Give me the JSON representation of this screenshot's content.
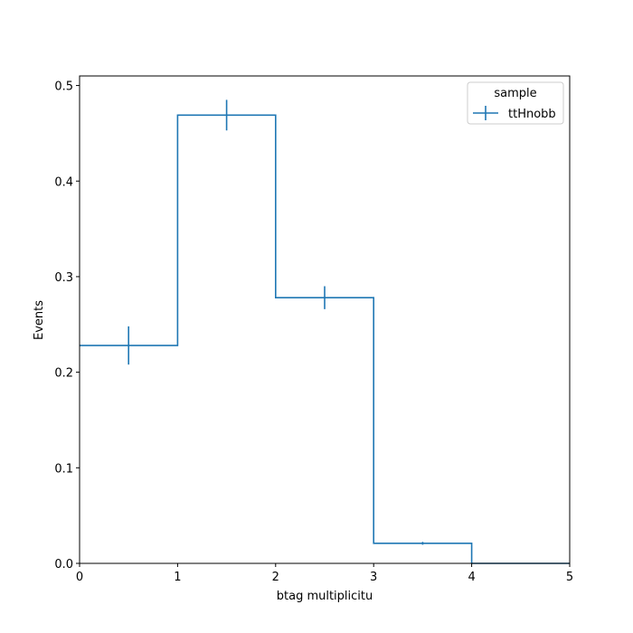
{
  "chart_data": {
    "type": "step histogram with error bars",
    "xlabel": "btag multiplicitu",
    "ylabel": "Events",
    "xlim": [
      0,
      5
    ],
    "ylim": [
      0,
      0.51
    ],
    "x_ticks": [
      "0",
      "1",
      "2",
      "3",
      "4",
      "5"
    ],
    "y_ticks": [
      "0.0",
      "0.1",
      "0.2",
      "0.3",
      "0.4",
      "0.5"
    ],
    "grid": false,
    "legend": {
      "title": "sample",
      "placement": "top-right",
      "entries": [
        "ttHnobb"
      ]
    },
    "series": [
      {
        "name": "ttHnobb",
        "color": "#1f77b4",
        "bin_edges": [
          0,
          1,
          2,
          3,
          4,
          5
        ],
        "bin_centers": [
          0.5,
          1.5,
          2.5,
          3.5,
          4.5
        ],
        "values": [
          0.228,
          0.469,
          0.278,
          0.021,
          0.0
        ],
        "errors": [
          0.02,
          0.016,
          0.012,
          0.0015,
          0.0
        ]
      }
    ]
  }
}
